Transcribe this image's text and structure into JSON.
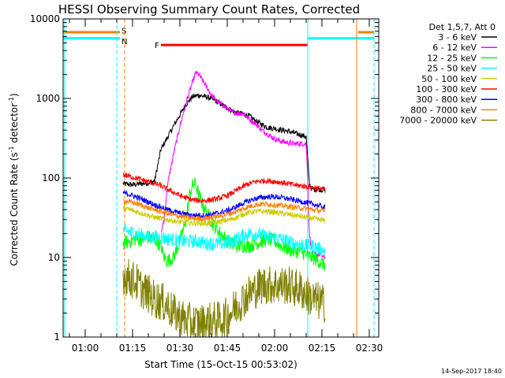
{
  "chart_data": {
    "type": "line",
    "title": "HESSI Observing Summary Count Rates, Corrected",
    "xlabel": "Start Time (15-Oct-15 00:53:02)",
    "ylabel_main": "Corrected Count Rate (s",
    "ylabel_sup": "-1",
    "ylabel_mid": " detector",
    "ylabel_sup2": "-1",
    "ylabel_end": ")",
    "y_scale": "log",
    "xlim_minutes": [
      53,
      153
    ],
    "ylim": [
      1,
      10000
    ],
    "x_ticks": [
      {
        "min": 60,
        "label": "01:00"
      },
      {
        "min": 75,
        "label": "01:15"
      },
      {
        "min": 90,
        "label": "01:30"
      },
      {
        "min": 105,
        "label": "01:45"
      },
      {
        "min": 120,
        "label": "02:00"
      },
      {
        "min": 135,
        "label": "02:15"
      },
      {
        "min": 150,
        "label": "02:30"
      }
    ],
    "y_ticks": [
      {
        "value": 1,
        "label": "1"
      },
      {
        "value": 10,
        "label": "10"
      },
      {
        "value": 100,
        "label": "100"
      },
      {
        "value": 1000,
        "label": "1000"
      },
      {
        "value": 10000,
        "label": "10000"
      }
    ],
    "legend_header": "Det 1,5,7, Att 0",
    "series": [
      {
        "name": "3 - 6 keV",
        "color": "#000000",
        "x": [
          72,
          75,
          78,
          81,
          82,
          84,
          86,
          88,
          90,
          92,
          94,
          96,
          98,
          100,
          102,
          104,
          106,
          108,
          110,
          112,
          114,
          116,
          118,
          120,
          122,
          124,
          126,
          128,
          130,
          131,
          131.5,
          132,
          134,
          136
        ],
        "y": [
          85,
          82,
          85,
          88,
          92,
          230,
          320,
          450,
          620,
          850,
          1050,
          1100,
          1050,
          1000,
          900,
          800,
          720,
          660,
          640,
          600,
          520,
          470,
          430,
          420,
          400,
          390,
          370,
          350,
          330,
          90,
          75,
          72,
          72,
          70
        ]
      },
      {
        "name": "6 - 12 keV",
        "color": "#ff00ff",
        "x": [
          84,
          85,
          86,
          88,
          90,
          92,
          94,
          95,
          96,
          98,
          100,
          102,
          104,
          106,
          108,
          110,
          112,
          114,
          116,
          118,
          120,
          122,
          124,
          126,
          128,
          130,
          130.5,
          131,
          132,
          134,
          136
        ],
        "y": [
          20,
          30,
          80,
          200,
          450,
          900,
          1600,
          2100,
          2000,
          1500,
          1100,
          900,
          800,
          700,
          650,
          650,
          550,
          480,
          400,
          350,
          310,
          290,
          280,
          270,
          270,
          270,
          100,
          20,
          11,
          11,
          10
        ]
      },
      {
        "name": "12 - 25 keV",
        "color": "#00ff00",
        "x": [
          72,
          74,
          76,
          78,
          80,
          82,
          84,
          85,
          86,
          88,
          90,
          92,
          93,
          94,
          95,
          96,
          98,
          100,
          102,
          104,
          106,
          108,
          110,
          112,
          114,
          116,
          118,
          120,
          122,
          124,
          126,
          128,
          130,
          132,
          134,
          136
        ],
        "y": [
          15,
          16,
          17,
          17,
          18,
          17,
          14,
          10,
          9,
          10,
          16,
          30,
          60,
          80,
          85,
          60,
          40,
          28,
          22,
          18,
          15,
          14,
          14,
          14,
          15,
          16,
          17,
          16,
          14,
          13,
          12,
          12,
          11,
          10,
          9,
          8
        ]
      },
      {
        "name": "25 - 50 keV",
        "color": "#00ffff",
        "x": [
          72,
          74,
          76,
          78,
          80,
          82,
          84,
          86,
          88,
          90,
          92,
          94,
          96,
          98,
          100,
          102,
          104,
          106,
          108,
          110,
          112,
          114,
          116,
          118,
          120,
          122,
          124,
          126,
          128,
          130,
          132,
          134,
          136
        ],
        "y": [
          22,
          21,
          20,
          19,
          18,
          18,
          18,
          17,
          17,
          16,
          16,
          16,
          16,
          15,
          15,
          15,
          15,
          16,
          17,
          19,
          20,
          20,
          19,
          18,
          18,
          17,
          16,
          15,
          15,
          14,
          14,
          13,
          12
        ]
      },
      {
        "name": "50 - 100 keV",
        "color": "#cccc00",
        "x": [
          72,
          74,
          76,
          78,
          80,
          82,
          84,
          86,
          88,
          90,
          92,
          94,
          96,
          98,
          100,
          102,
          104,
          106,
          108,
          110,
          112,
          114,
          116,
          118,
          120,
          122,
          124,
          126,
          128,
          130,
          132,
          134,
          136
        ],
        "y": [
          42,
          40,
          38,
          36,
          34,
          32,
          31,
          30,
          29,
          28,
          28,
          27,
          27,
          27,
          27,
          28,
          29,
          30,
          32,
          35,
          37,
          38,
          38,
          38,
          37,
          36,
          35,
          34,
          33,
          32,
          31,
          30,
          29
        ]
      },
      {
        "name": "100 - 300 keV",
        "color": "#ff0000",
        "x": [
          72,
          74,
          76,
          78,
          80,
          82,
          84,
          86,
          88,
          90,
          92,
          94,
          96,
          98,
          100,
          102,
          104,
          106,
          108,
          110,
          112,
          114,
          116,
          118,
          120,
          122,
          124,
          126,
          128,
          130,
          132,
          134,
          136
        ],
        "y": [
          110,
          105,
          100,
          95,
          90,
          85,
          80,
          72,
          66,
          60,
          56,
          53,
          52,
          52,
          53,
          55,
          58,
          63,
          70,
          78,
          85,
          90,
          92,
          92,
          90,
          88,
          85,
          82,
          80,
          78,
          76,
          74,
          72
        ]
      },
      {
        "name": "300 - 800 keV",
        "color": "#0000ff",
        "x": [
          72,
          74,
          76,
          78,
          80,
          82,
          84,
          86,
          88,
          90,
          92,
          94,
          96,
          98,
          100,
          102,
          104,
          106,
          108,
          110,
          112,
          114,
          116,
          118,
          120,
          122,
          124,
          126,
          128,
          130,
          132,
          134,
          136
        ],
        "y": [
          65,
          62,
          58,
          54,
          50,
          46,
          43,
          40,
          38,
          36,
          35,
          34,
          34,
          34,
          35,
          36,
          38,
          40,
          44,
          48,
          52,
          55,
          57,
          58,
          58,
          57,
          55,
          53,
          51,
          49,
          47,
          45,
          42
        ]
      },
      {
        "name": "800 - 7000 keV",
        "color": "#ff8000",
        "x": [
          72,
          74,
          76,
          78,
          80,
          82,
          84,
          86,
          88,
          90,
          92,
          94,
          96,
          98,
          100,
          102,
          104,
          106,
          108,
          110,
          112,
          114,
          116,
          118,
          120,
          122,
          124,
          126,
          128,
          130,
          132,
          134,
          136
        ],
        "y": [
          52,
          50,
          48,
          45,
          42,
          40,
          38,
          36,
          34,
          33,
          32,
          31,
          31,
          31,
          32,
          33,
          34,
          36,
          38,
          41,
          44,
          46,
          47,
          47,
          46,
          45,
          44,
          43,
          42,
          41,
          40,
          39,
          38
        ]
      },
      {
        "name": "7000 - 20000 keV",
        "color": "#808000",
        "x": [
          72,
          74,
          76,
          78,
          80,
          82,
          84,
          86,
          88,
          90,
          92,
          94,
          96,
          98,
          100,
          102,
          104,
          106,
          108,
          110,
          112,
          114,
          116,
          118,
          120,
          122,
          124,
          126,
          128,
          130,
          132,
          134,
          136
        ],
        "y": [
          6,
          5.5,
          5,
          4,
          3.5,
          3,
          2.8,
          2.5,
          2,
          1.8,
          1.6,
          1.5,
          1.5,
          1.5,
          1.6,
          1.6,
          1.7,
          2,
          2.5,
          3,
          3.5,
          4,
          4.5,
          4.5,
          4.5,
          4.5,
          4.5,
          4.2,
          4,
          3.5,
          3,
          2.8,
          2.6
        ]
      }
    ],
    "annotations": [
      {
        "label": "S",
        "color": "#ff8000",
        "x": 71.5
      },
      {
        "label": "N",
        "color": "#00ffff",
        "x": 71.5
      },
      {
        "label": "F",
        "color": "#ff0000",
        "x": 84
      }
    ],
    "flare_bar": {
      "x_start": 84,
      "x_end": 130.5,
      "y": 4700,
      "color": "#ff0000"
    },
    "orbit_bars": [
      {
        "color": "#ff8000",
        "segments": [
          [
            53,
            71
          ],
          [
            146.5,
            151.5
          ]
        ],
        "y": 6800
      },
      {
        "color": "#00ffff",
        "segments": [
          [
            53,
            71
          ],
          [
            130.5,
            151.5
          ]
        ],
        "y": 5700
      }
    ],
    "vlines": [
      {
        "x": 53.5,
        "color": "#00ffff",
        "dash": false
      },
      {
        "x": 70,
        "color": "#00ffff",
        "dash": true
      },
      {
        "x": 72.5,
        "color": "#ff8000",
        "dash": true
      },
      {
        "x": 130.5,
        "color": "#00ffff",
        "dash": false
      },
      {
        "x": 146,
        "color": "#ff8000",
        "dash": false
      },
      {
        "x": 151.5,
        "color": "#00ffff",
        "dash": true
      }
    ],
    "timestamp": "14-Sep-2017 18:40"
  }
}
